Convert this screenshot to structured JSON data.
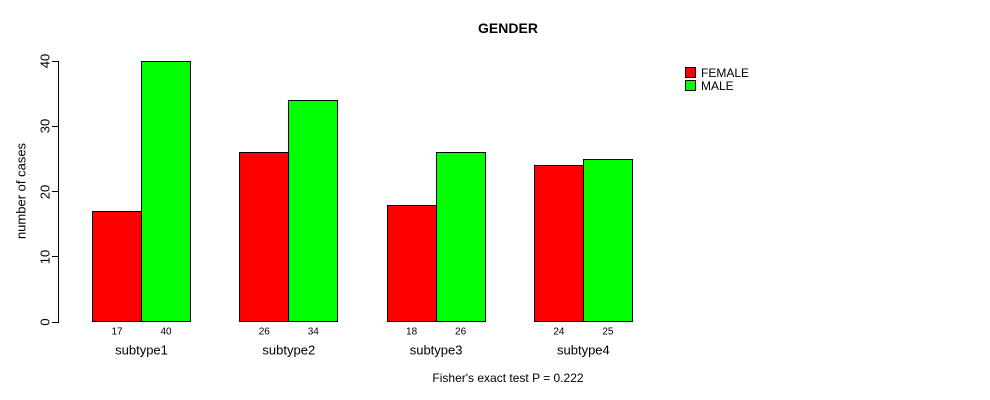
{
  "chart_data": {
    "type": "bar",
    "title": "GENDER",
    "categories": [
      "subtype1",
      "subtype2",
      "subtype3",
      "subtype4"
    ],
    "series": [
      {
        "name": "FEMALE",
        "color": "#ff0000",
        "values": [
          17,
          26,
          18,
          24
        ]
      },
      {
        "name": "MALE",
        "color": "#00ff00",
        "values": [
          40,
          34,
          26,
          25
        ]
      }
    ],
    "xlabel": "",
    "ylabel": "number of cases",
    "ylim": [
      0,
      40
    ],
    "yticks": [
      0,
      10,
      20,
      30,
      40
    ],
    "grid": false,
    "bar_value_labels": true,
    "legend_position": "top-right",
    "annotation": "Fisher's exact test P = 0.222"
  }
}
